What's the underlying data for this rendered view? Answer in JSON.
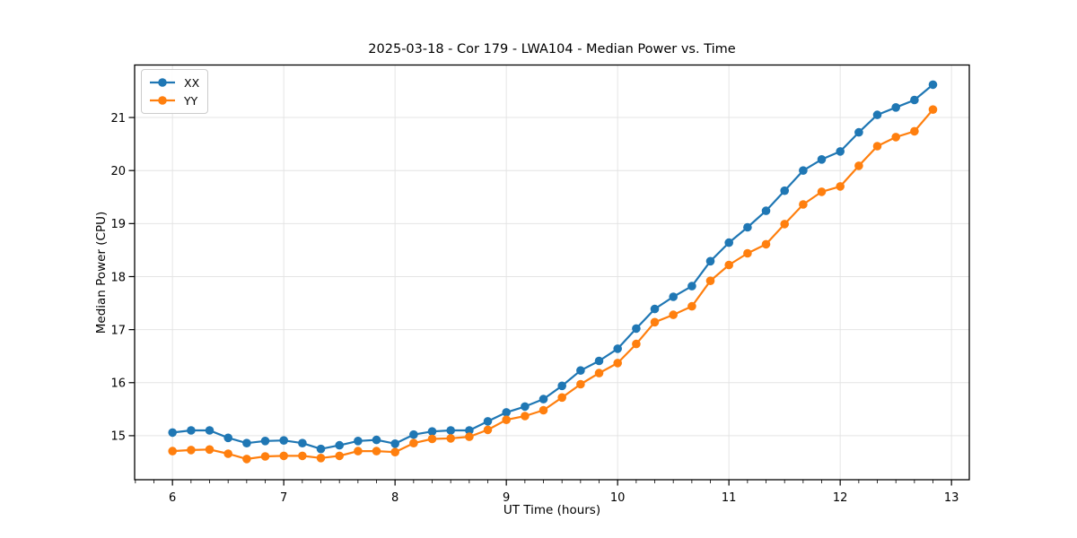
{
  "chart_data": {
    "type": "line",
    "title": "2025-03-18 - Cor 179 - LWA104 - Median Power vs. Time",
    "xlabel": "UT Time (hours)",
    "ylabel": "Median Power (CPU)",
    "xlim": [
      5.66,
      13.16
    ],
    "ylim": [
      14.17,
      21.99
    ],
    "xticks": [
      6,
      7,
      8,
      9,
      10,
      11,
      12,
      13
    ],
    "yticks": [
      15,
      16,
      17,
      18,
      19,
      20,
      21
    ],
    "x_minor_step": 0.16667,
    "grid": true,
    "grid_color": "#e4e4e4",
    "legend_position": "upper left",
    "x": [
      6.0,
      6.167,
      6.333,
      6.5,
      6.667,
      6.833,
      7.0,
      7.167,
      7.333,
      7.5,
      7.667,
      7.833,
      8.0,
      8.167,
      8.333,
      8.5,
      8.667,
      8.833,
      9.0,
      9.167,
      9.333,
      9.5,
      9.667,
      9.833,
      10.0,
      10.167,
      10.333,
      10.5,
      10.667,
      10.833,
      11.0,
      11.167,
      11.333,
      11.5,
      11.667,
      11.833,
      12.0,
      12.167,
      12.333,
      12.5,
      12.667,
      12.833
    ],
    "series": [
      {
        "name": "XX",
        "color": "#1f77b4",
        "values": [
          15.06,
          15.1,
          15.1,
          14.96,
          14.86,
          14.9,
          14.91,
          14.86,
          14.75,
          14.82,
          14.9,
          14.92,
          14.85,
          15.02,
          15.08,
          15.1,
          15.1,
          15.27,
          15.44,
          15.55,
          15.69,
          15.94,
          16.23,
          16.41,
          16.64,
          17.02,
          17.39,
          17.62,
          17.82,
          18.29,
          18.64,
          18.93,
          19.24,
          19.62,
          20.0,
          20.21,
          20.36,
          20.72,
          21.05,
          21.19,
          21.33,
          21.62
        ]
      },
      {
        "name": "YY",
        "color": "#ff7f0e",
        "values": [
          14.71,
          14.73,
          14.74,
          14.66,
          14.56,
          14.61,
          14.62,
          14.62,
          14.58,
          14.62,
          14.71,
          14.71,
          14.69,
          14.86,
          14.94,
          14.95,
          14.98,
          15.11,
          15.3,
          15.37,
          15.48,
          15.72,
          15.97,
          16.18,
          16.37,
          16.73,
          17.14,
          17.28,
          17.44,
          17.92,
          18.22,
          18.44,
          18.61,
          18.99,
          19.36,
          19.6,
          19.7,
          20.09,
          20.46,
          20.63,
          20.74,
          21.15
        ]
      }
    ]
  }
}
